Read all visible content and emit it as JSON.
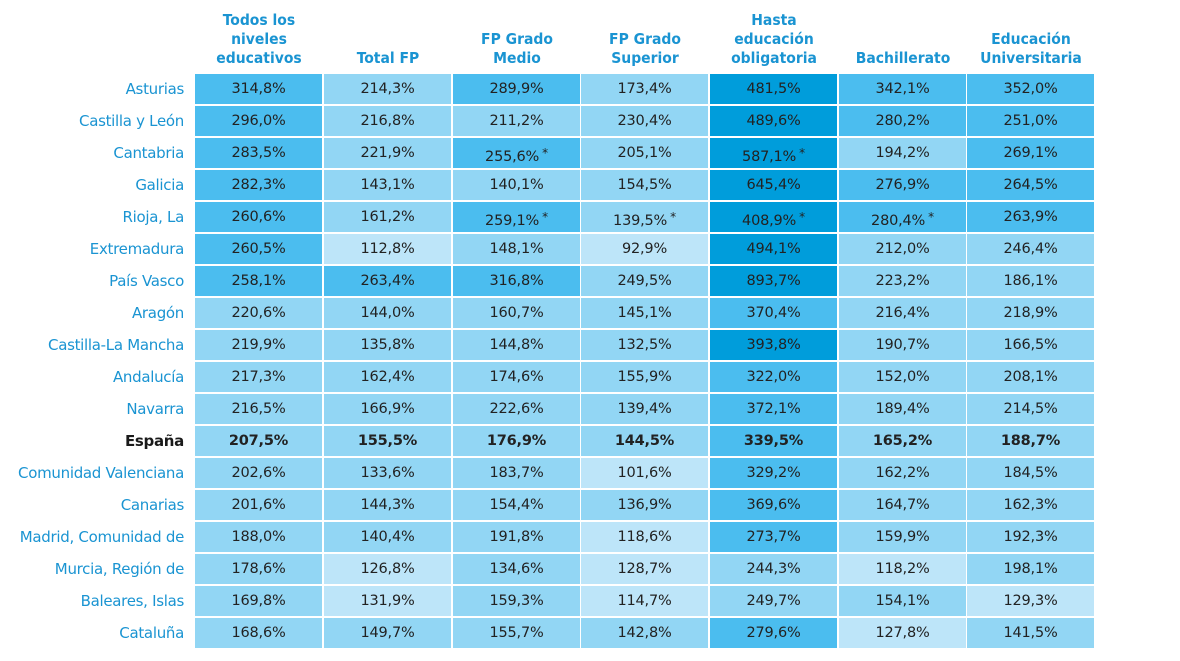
{
  "chart_data": {
    "type": "heatmap",
    "title": "",
    "columns": [
      "Todos los niveles educativos",
      "Total FP",
      "FP Grado Medio",
      "FP Grado Superior",
      "Hasta educación obligatoria",
      "Bachillerato",
      "Educación Universitaria"
    ],
    "column_lines": [
      [
        "Todos los",
        "niveles",
        "educativos"
      ],
      [
        "Total FP"
      ],
      [
        "FP Grado",
        "Medio"
      ],
      [
        "FP Grado",
        "Superior"
      ],
      [
        "Hasta",
        "educación",
        "obligatoria"
      ],
      [
        "Bachillerato"
      ],
      [
        "Educación",
        "Universitaria"
      ]
    ],
    "rows": [
      {
        "label": "Asturias",
        "bold": false,
        "values": [
          "314,8%",
          "214,3%",
          "289,9%",
          "173,4%",
          "481,5%",
          "342,1%",
          "352,0%"
        ],
        "numeric": [
          314.8,
          214.3,
          289.9,
          173.4,
          481.5,
          342.1,
          352.0
        ],
        "flags": [
          false,
          false,
          false,
          false,
          false,
          false,
          false
        ]
      },
      {
        "label": "Castilla y León",
        "bold": false,
        "values": [
          "296,0%",
          "216,8%",
          "211,2%",
          "230,4%",
          "489,6%",
          "280,2%",
          "251,0%"
        ],
        "numeric": [
          296.0,
          216.8,
          211.2,
          230.4,
          489.6,
          280.2,
          251.0
        ],
        "flags": [
          false,
          false,
          false,
          false,
          false,
          false,
          false
        ]
      },
      {
        "label": "Cantabria",
        "bold": false,
        "values": [
          "283,5%",
          "221,9%",
          "255,6%",
          "205,1%",
          "587,1%",
          "194,2%",
          "269,1%"
        ],
        "numeric": [
          283.5,
          221.9,
          255.6,
          205.1,
          587.1,
          194.2,
          269.1
        ],
        "flags": [
          false,
          false,
          true,
          false,
          true,
          false,
          false
        ]
      },
      {
        "label": "Galicia",
        "bold": false,
        "values": [
          "282,3%",
          "143,1%",
          "140,1%",
          "154,5%",
          "645,4%",
          "276,9%",
          "264,5%"
        ],
        "numeric": [
          282.3,
          143.1,
          140.1,
          154.5,
          645.4,
          276.9,
          264.5
        ],
        "flags": [
          false,
          false,
          false,
          false,
          false,
          false,
          false
        ]
      },
      {
        "label": "Rioja, La",
        "bold": false,
        "values": [
          "260,6%",
          "161,2%",
          "259,1%",
          "139,5%",
          "408,9%",
          "280,4%",
          "263,9%"
        ],
        "numeric": [
          260.6,
          161.2,
          259.1,
          139.5,
          408.9,
          280.4,
          263.9
        ],
        "flags": [
          false,
          false,
          true,
          true,
          true,
          true,
          false
        ]
      },
      {
        "label": "Extremadura",
        "bold": false,
        "values": [
          "260,5%",
          "112,8%",
          "148,1%",
          "92,9%",
          "494,1%",
          "212,0%",
          "246,4%"
        ],
        "numeric": [
          260.5,
          112.8,
          148.1,
          92.9,
          494.1,
          212.0,
          246.4
        ],
        "flags": [
          false,
          false,
          false,
          false,
          false,
          false,
          false
        ]
      },
      {
        "label": "País Vasco",
        "bold": false,
        "values": [
          "258,1%",
          "263,4%",
          "316,8%",
          "249,5%",
          "893,7%",
          "223,2%",
          "186,1%"
        ],
        "numeric": [
          258.1,
          263.4,
          316.8,
          249.5,
          893.7,
          223.2,
          186.1
        ],
        "flags": [
          false,
          false,
          false,
          false,
          false,
          false,
          false
        ]
      },
      {
        "label": "Aragón",
        "bold": false,
        "values": [
          "220,6%",
          "144,0%",
          "160,7%",
          "145,1%",
          "370,4%",
          "216,4%",
          "218,9%"
        ],
        "numeric": [
          220.6,
          144.0,
          160.7,
          145.1,
          370.4,
          216.4,
          218.9
        ],
        "flags": [
          false,
          false,
          false,
          false,
          false,
          false,
          false
        ]
      },
      {
        "label": "Castilla-La Mancha",
        "bold": false,
        "values": [
          "219,9%",
          "135,8%",
          "144,8%",
          "132,5%",
          "393,8%",
          "190,7%",
          "166,5%"
        ],
        "numeric": [
          219.9,
          135.8,
          144.8,
          132.5,
          393.8,
          190.7,
          166.5
        ],
        "flags": [
          false,
          false,
          false,
          false,
          false,
          false,
          false
        ]
      },
      {
        "label": "Andalucía",
        "bold": false,
        "values": [
          "217,3%",
          "162,4%",
          "174,6%",
          "155,9%",
          "322,0%",
          "152,0%",
          "208,1%"
        ],
        "numeric": [
          217.3,
          162.4,
          174.6,
          155.9,
          322.0,
          152.0,
          208.1
        ],
        "flags": [
          false,
          false,
          false,
          false,
          false,
          false,
          false
        ]
      },
      {
        "label": "Navarra",
        "bold": false,
        "values": [
          "216,5%",
          "166,9%",
          "222,6%",
          "139,4%",
          "372,1%",
          "189,4%",
          "214,5%"
        ],
        "numeric": [
          216.5,
          166.9,
          222.6,
          139.4,
          372.1,
          189.4,
          214.5
        ],
        "flags": [
          false,
          false,
          false,
          false,
          false,
          false,
          false
        ]
      },
      {
        "label": "España",
        "bold": true,
        "values": [
          "207,5%",
          "155,5%",
          "176,9%",
          "144,5%",
          "339,5%",
          "165,2%",
          "188,7%"
        ],
        "numeric": [
          207.5,
          155.5,
          176.9,
          144.5,
          339.5,
          165.2,
          188.7
        ],
        "flags": [
          false,
          false,
          false,
          false,
          false,
          false,
          false
        ]
      },
      {
        "label": "Comunidad Valenciana",
        "bold": false,
        "values": [
          "202,6%",
          "133,6%",
          "183,7%",
          "101,6%",
          "329,2%",
          "162,2%",
          "184,5%"
        ],
        "numeric": [
          202.6,
          133.6,
          183.7,
          101.6,
          329.2,
          162.2,
          184.5
        ],
        "flags": [
          false,
          false,
          false,
          false,
          false,
          false,
          false
        ]
      },
      {
        "label": "Canarias",
        "bold": false,
        "values": [
          "201,6%",
          "144,3%",
          "154,4%",
          "136,9%",
          "369,6%",
          "164,7%",
          "162,3%"
        ],
        "numeric": [
          201.6,
          144.3,
          154.4,
          136.9,
          369.6,
          164.7,
          162.3
        ],
        "flags": [
          false,
          false,
          false,
          false,
          false,
          false,
          false
        ]
      },
      {
        "label": "Madrid, Comunidad de",
        "bold": false,
        "values": [
          "188,0%",
          "140,4%",
          "191,8%",
          "118,6%",
          "273,7%",
          "159,9%",
          "192,3%"
        ],
        "numeric": [
          188.0,
          140.4,
          191.8,
          118.6,
          273.7,
          159.9,
          192.3
        ],
        "flags": [
          false,
          false,
          false,
          false,
          false,
          false,
          false
        ]
      },
      {
        "label": "Murcia, Región de",
        "bold": false,
        "values": [
          "178,6%",
          "126,8%",
          "134,6%",
          "128,7%",
          "244,3%",
          "118,2%",
          "198,1%"
        ],
        "numeric": [
          178.6,
          126.8,
          134.6,
          128.7,
          244.3,
          118.2,
          198.1
        ],
        "flags": [
          false,
          false,
          false,
          false,
          false,
          false,
          false
        ]
      },
      {
        "label": "Baleares, Islas",
        "bold": false,
        "values": [
          "169,8%",
          "131,9%",
          "159,3%",
          "114,7%",
          "249,7%",
          "154,1%",
          "129,3%"
        ],
        "numeric": [
          169.8,
          131.9,
          159.3,
          114.7,
          249.7,
          154.1,
          129.3
        ],
        "flags": [
          false,
          false,
          false,
          false,
          false,
          false,
          false
        ]
      },
      {
        "label": "Cataluña",
        "bold": false,
        "values": [
          "168,6%",
          "149,7%",
          "155,7%",
          "142,8%",
          "279,6%",
          "127,8%",
          "141,5%"
        ],
        "numeric": [
          168.6,
          149.7,
          155.7,
          142.8,
          279.6,
          127.8,
          141.5
        ],
        "flags": [
          false,
          false,
          false,
          false,
          false,
          false,
          false
        ]
      }
    ],
    "flag_symbol": "*",
    "color_scale": [
      {
        "max": 132,
        "color": "#bde5f9"
      },
      {
        "max": 250,
        "color": "#92d6f4"
      },
      {
        "max": 380,
        "color": "#4bbdef"
      },
      {
        "max": 100000,
        "color": "#009ddb"
      }
    ]
  },
  "colors": {
    "header_text": "#1a94d2",
    "row_label_text": "#1a94d2",
    "highlight_row_label_text": "#1a1a1a",
    "cell_text": "#222222"
  }
}
